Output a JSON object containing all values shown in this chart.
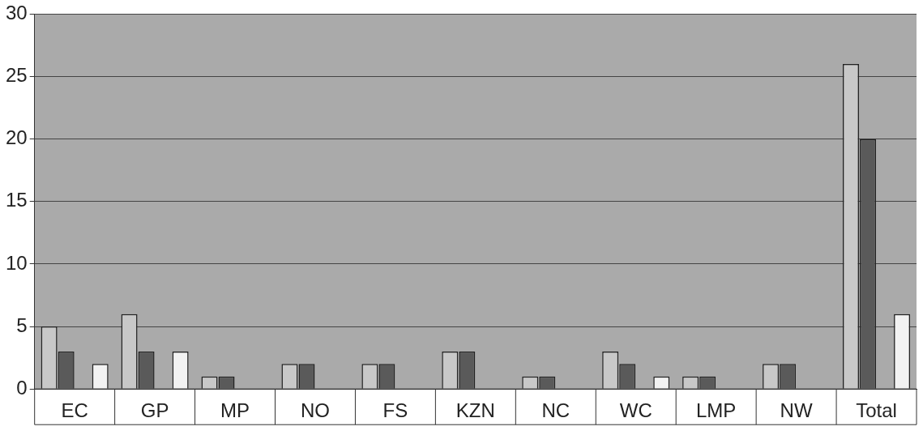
{
  "chart_data": {
    "type": "bar",
    "categories": [
      "EC",
      "GP",
      "MP",
      "NO",
      "FS",
      "KZN",
      "NC",
      "WC",
      "LMP",
      "NW",
      "Total"
    ],
    "series": [
      {
        "color": "#c8c8c8",
        "values": [
          5,
          6,
          1,
          2,
          2,
          3,
          1,
          3,
          1,
          2,
          26
        ]
      },
      {
        "color": "#5a5a5a",
        "values": [
          3,
          3,
          1,
          2,
          2,
          3,
          1,
          2,
          1,
          2,
          20
        ]
      },
      {
        "color": "#9a9a9a",
        "values": [
          0,
          0,
          0,
          0,
          0,
          0,
          0,
          0,
          0,
          0,
          0
        ]
      },
      {
        "color": "#f2f2f2",
        "values": [
          2,
          3,
          0,
          0,
          0,
          0,
          0,
          1,
          0,
          0,
          6
        ]
      }
    ],
    "ylim": [
      0,
      30
    ],
    "yticks": [
      0,
      5,
      10,
      15,
      20,
      25,
      30
    ],
    "grid": "y",
    "legend": false
  }
}
